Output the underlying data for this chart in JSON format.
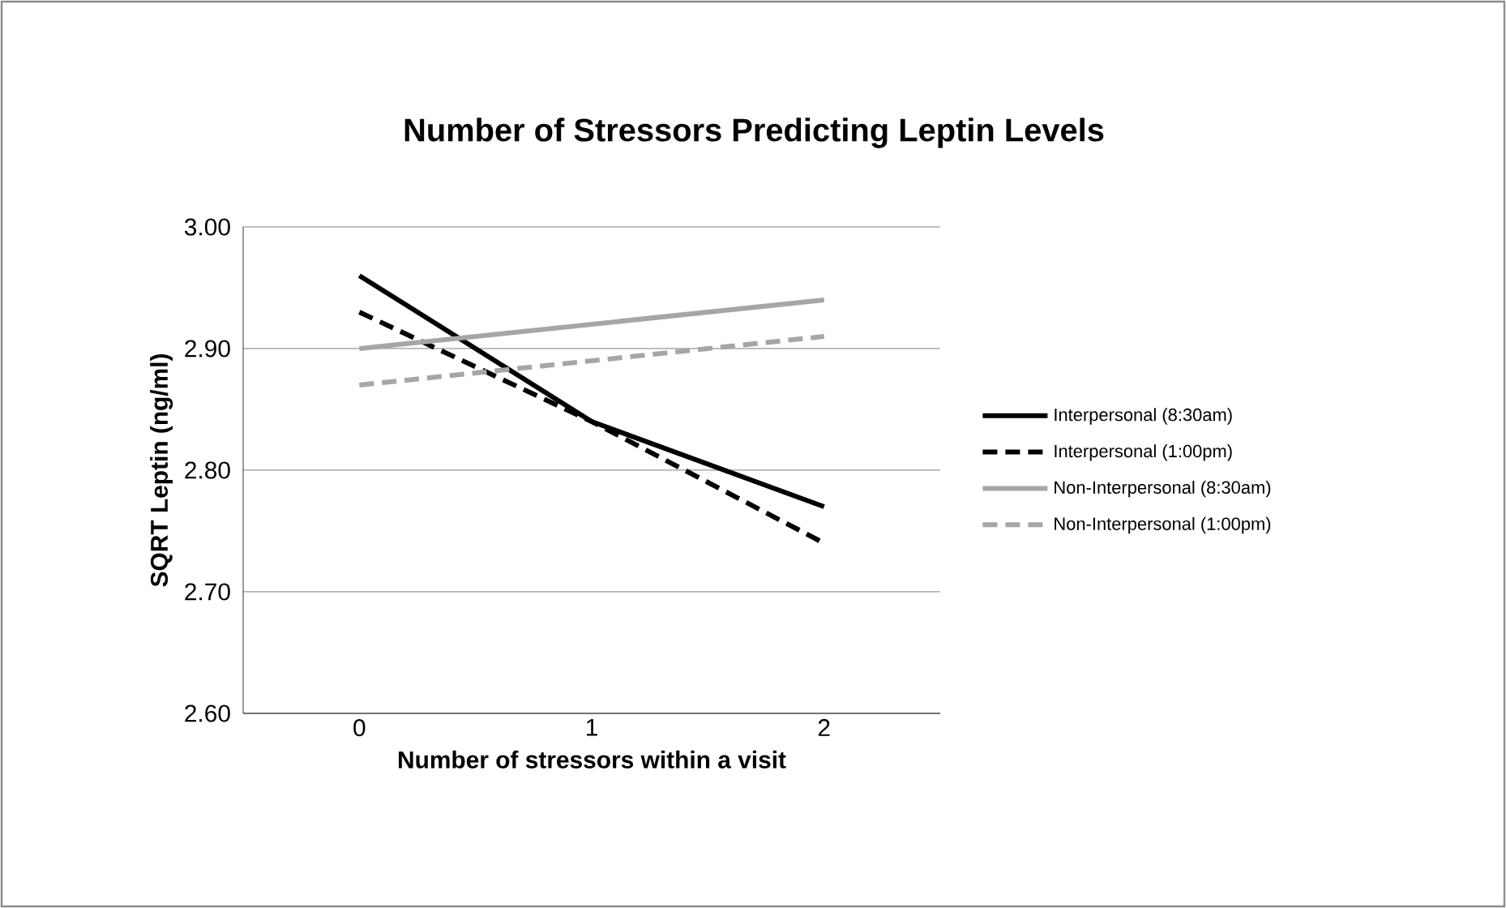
{
  "chart_data": {
    "type": "line",
    "title": "Number of Stressors Predicting Leptin Levels",
    "xlabel": "Number of stressors  within a visit",
    "ylabel": "SQRT Leptin (ng/ml)",
    "categories": [
      "0",
      "1",
      "2"
    ],
    "ylim": [
      2.6,
      3.0
    ],
    "yticks": [
      {
        "value": 2.6,
        "label": "2.60"
      },
      {
        "value": 2.7,
        "label": "2.70"
      },
      {
        "value": 2.8,
        "label": "2.80"
      },
      {
        "value": 2.9,
        "label": "2.90"
      },
      {
        "value": 3.0,
        "label": "3.00"
      }
    ],
    "grid": "y",
    "legend": "right",
    "marker": "none",
    "series": [
      {
        "name": "Interpersonal (8:30am)",
        "color": "#000000",
        "line_style": "solid",
        "values": [
          2.96,
          2.84,
          2.77
        ]
      },
      {
        "name": "Interpersonal (1:00pm)",
        "color": "#000000",
        "line_style": "dashed",
        "values": [
          2.93,
          2.84,
          2.74
        ]
      },
      {
        "name": "Non-Interpersonal (8:30am)",
        "color": "#a6a6a6",
        "line_style": "solid",
        "values": [
          2.9,
          2.92,
          2.94
        ]
      },
      {
        "name": "Non-Interpersonal (1:00pm)",
        "color": "#a6a6a6",
        "line_style": "dashed",
        "values": [
          2.87,
          2.89,
          2.91
        ]
      }
    ]
  }
}
